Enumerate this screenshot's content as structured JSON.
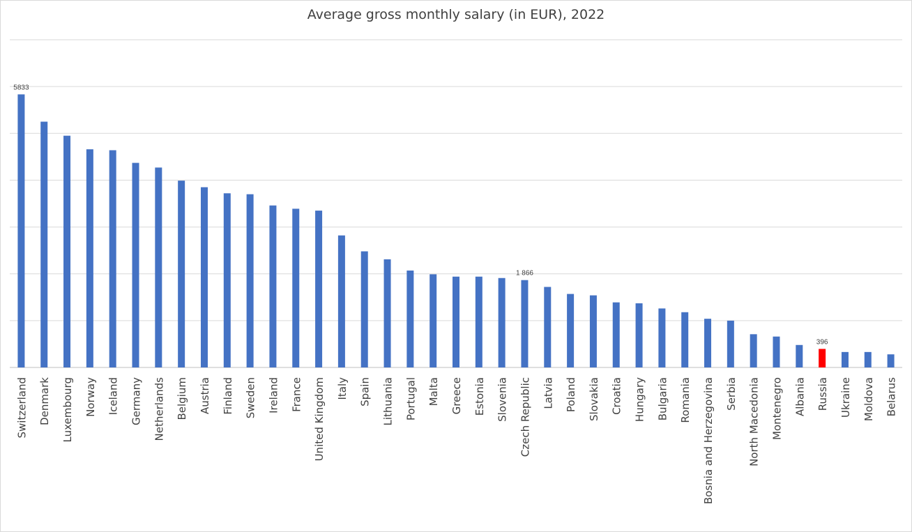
{
  "chart_data": {
    "type": "bar",
    "title": "Average gross monthly salary (in EUR), 2022",
    "xlabel": "",
    "ylabel": "",
    "ylim": [
      0,
      7000
    ],
    "grid": true,
    "legend": "none",
    "colors": {
      "bar": "#4472c4",
      "highlight": "#ff0000",
      "grid": "#d9d9d9",
      "text": "#404040"
    },
    "categories": [
      "Switzerland",
      "Denmark",
      "Luxembourg",
      "Norway",
      "Iceland",
      "Germany",
      "Netherlands",
      "Belgium",
      "Austria",
      "Finland",
      "Sweden",
      "Ireland",
      "France",
      "United Kingdom",
      "Italy",
      "Spain",
      "Lithuania",
      "Portugal",
      "Malta",
      "Greece",
      "Estonia",
      "Slovenia",
      "Czech Republic",
      "Latvia",
      "Poland",
      "Slovakia",
      "Croatia",
      "Hungary",
      "Bulgaria",
      "Romania",
      "Bosnia and Herzegovina",
      "Serbia",
      "North Macedonia",
      "Montenegro",
      "Albania",
      "Russia",
      "Ukraine",
      "Moldova",
      "Belarus"
    ],
    "values": [
      5833,
      5250,
      4950,
      4660,
      4640,
      4370,
      4270,
      3990,
      3850,
      3720,
      3700,
      3460,
      3390,
      3350,
      2820,
      2480,
      2310,
      2070,
      1990,
      1940,
      1940,
      1910,
      1866,
      1720,
      1570,
      1540,
      1390,
      1370,
      1260,
      1180,
      1040,
      1000,
      710,
      660,
      480,
      396,
      330,
      330,
      280
    ],
    "highlight": [
      "Russia"
    ],
    "data_labels": [
      {
        "category": "Switzerland",
        "text": "5833"
      },
      {
        "category": "Czech Republic",
        "text": "1 866"
      },
      {
        "category": "Russia",
        "text": "396"
      }
    ]
  }
}
